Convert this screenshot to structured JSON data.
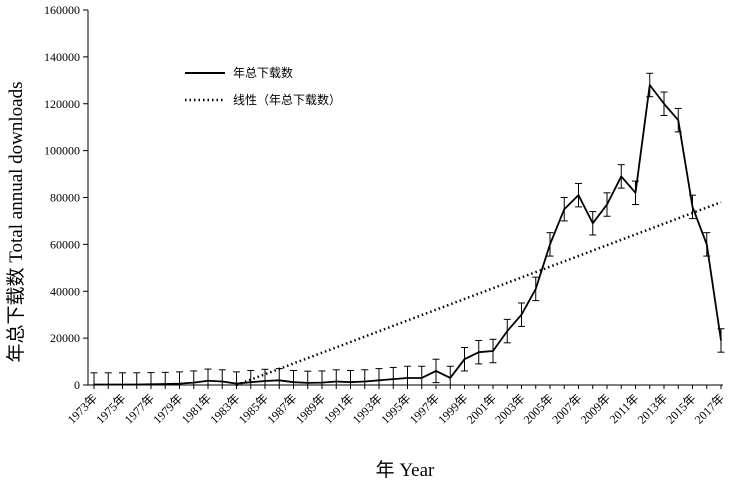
{
  "chart_data": {
    "type": "line",
    "title": "",
    "xlabel": "年  Year",
    "ylabel": "年总下载数  Total annual downloads",
    "ylim": [
      0,
      160000
    ],
    "yticks": [
      "0",
      "20000",
      "40000",
      "60000",
      "80000",
      "100000",
      "120000",
      "140000",
      "160000"
    ],
    "x": [
      1973,
      1974,
      1975,
      1976,
      1977,
      1978,
      1979,
      1980,
      1981,
      1982,
      1983,
      1984,
      1985,
      1986,
      1987,
      1988,
      1989,
      1990,
      1991,
      1992,
      1993,
      1994,
      1995,
      1996,
      1997,
      1998,
      1999,
      2000,
      2001,
      2002,
      2003,
      2004,
      2005,
      2006,
      2007,
      2008,
      2009,
      2010,
      2011,
      2012,
      2013,
      2014,
      2015,
      2016,
      2017
    ],
    "xtick_labels": [
      "1973年",
      "1975年",
      "1977年",
      "1979年",
      "1981年",
      "1983年",
      "1985年",
      "1987年",
      "1989年",
      "1991年",
      "1993年",
      "1995年",
      "1997年",
      "1999年",
      "2001年",
      "2003年",
      "2005年",
      "2007年",
      "2009年",
      "2011年",
      "2013年",
      "2015年",
      "2017年"
    ],
    "series": [
      {
        "name": "年总下载数",
        "style": "solid",
        "values": [
          200,
          200,
          200,
          200,
          300,
          400,
          600,
          1000,
          1800,
          1500,
          600,
          1200,
          1700,
          2000,
          1200,
          900,
          1000,
          1500,
          1200,
          1500,
          2000,
          2500,
          3000,
          3000,
          6000,
          3000,
          11000,
          14000,
          14500,
          23000,
          30000,
          41000,
          60000,
          75000,
          81000,
          69000,
          77000,
          89000,
          82000,
          128000,
          120000,
          113000,
          76000,
          60000,
          19000
        ],
        "error": [
          5000,
          5000,
          5000,
          5000,
          5000,
          5000,
          5000,
          5000,
          5000,
          5000,
          5000,
          5000,
          5000,
          5000,
          5000,
          5000,
          5000,
          5000,
          5000,
          5000,
          5000,
          5000,
          5000,
          5000,
          5000,
          5000,
          5000,
          5000,
          5000,
          5000,
          5000,
          5000,
          5000,
          5000,
          5000,
          5000,
          5000,
          5000,
          5000,
          5000,
          5000,
          5000,
          5000,
          5000,
          5000
        ],
        "color": "#000000"
      },
      {
        "name": "线性（年总下载数）",
        "style": "dotted",
        "x": [
          1983,
          2017
        ],
        "values": [
          0,
          78000
        ],
        "color": "#000000"
      }
    ],
    "legend": "top-left",
    "grid": false
  }
}
